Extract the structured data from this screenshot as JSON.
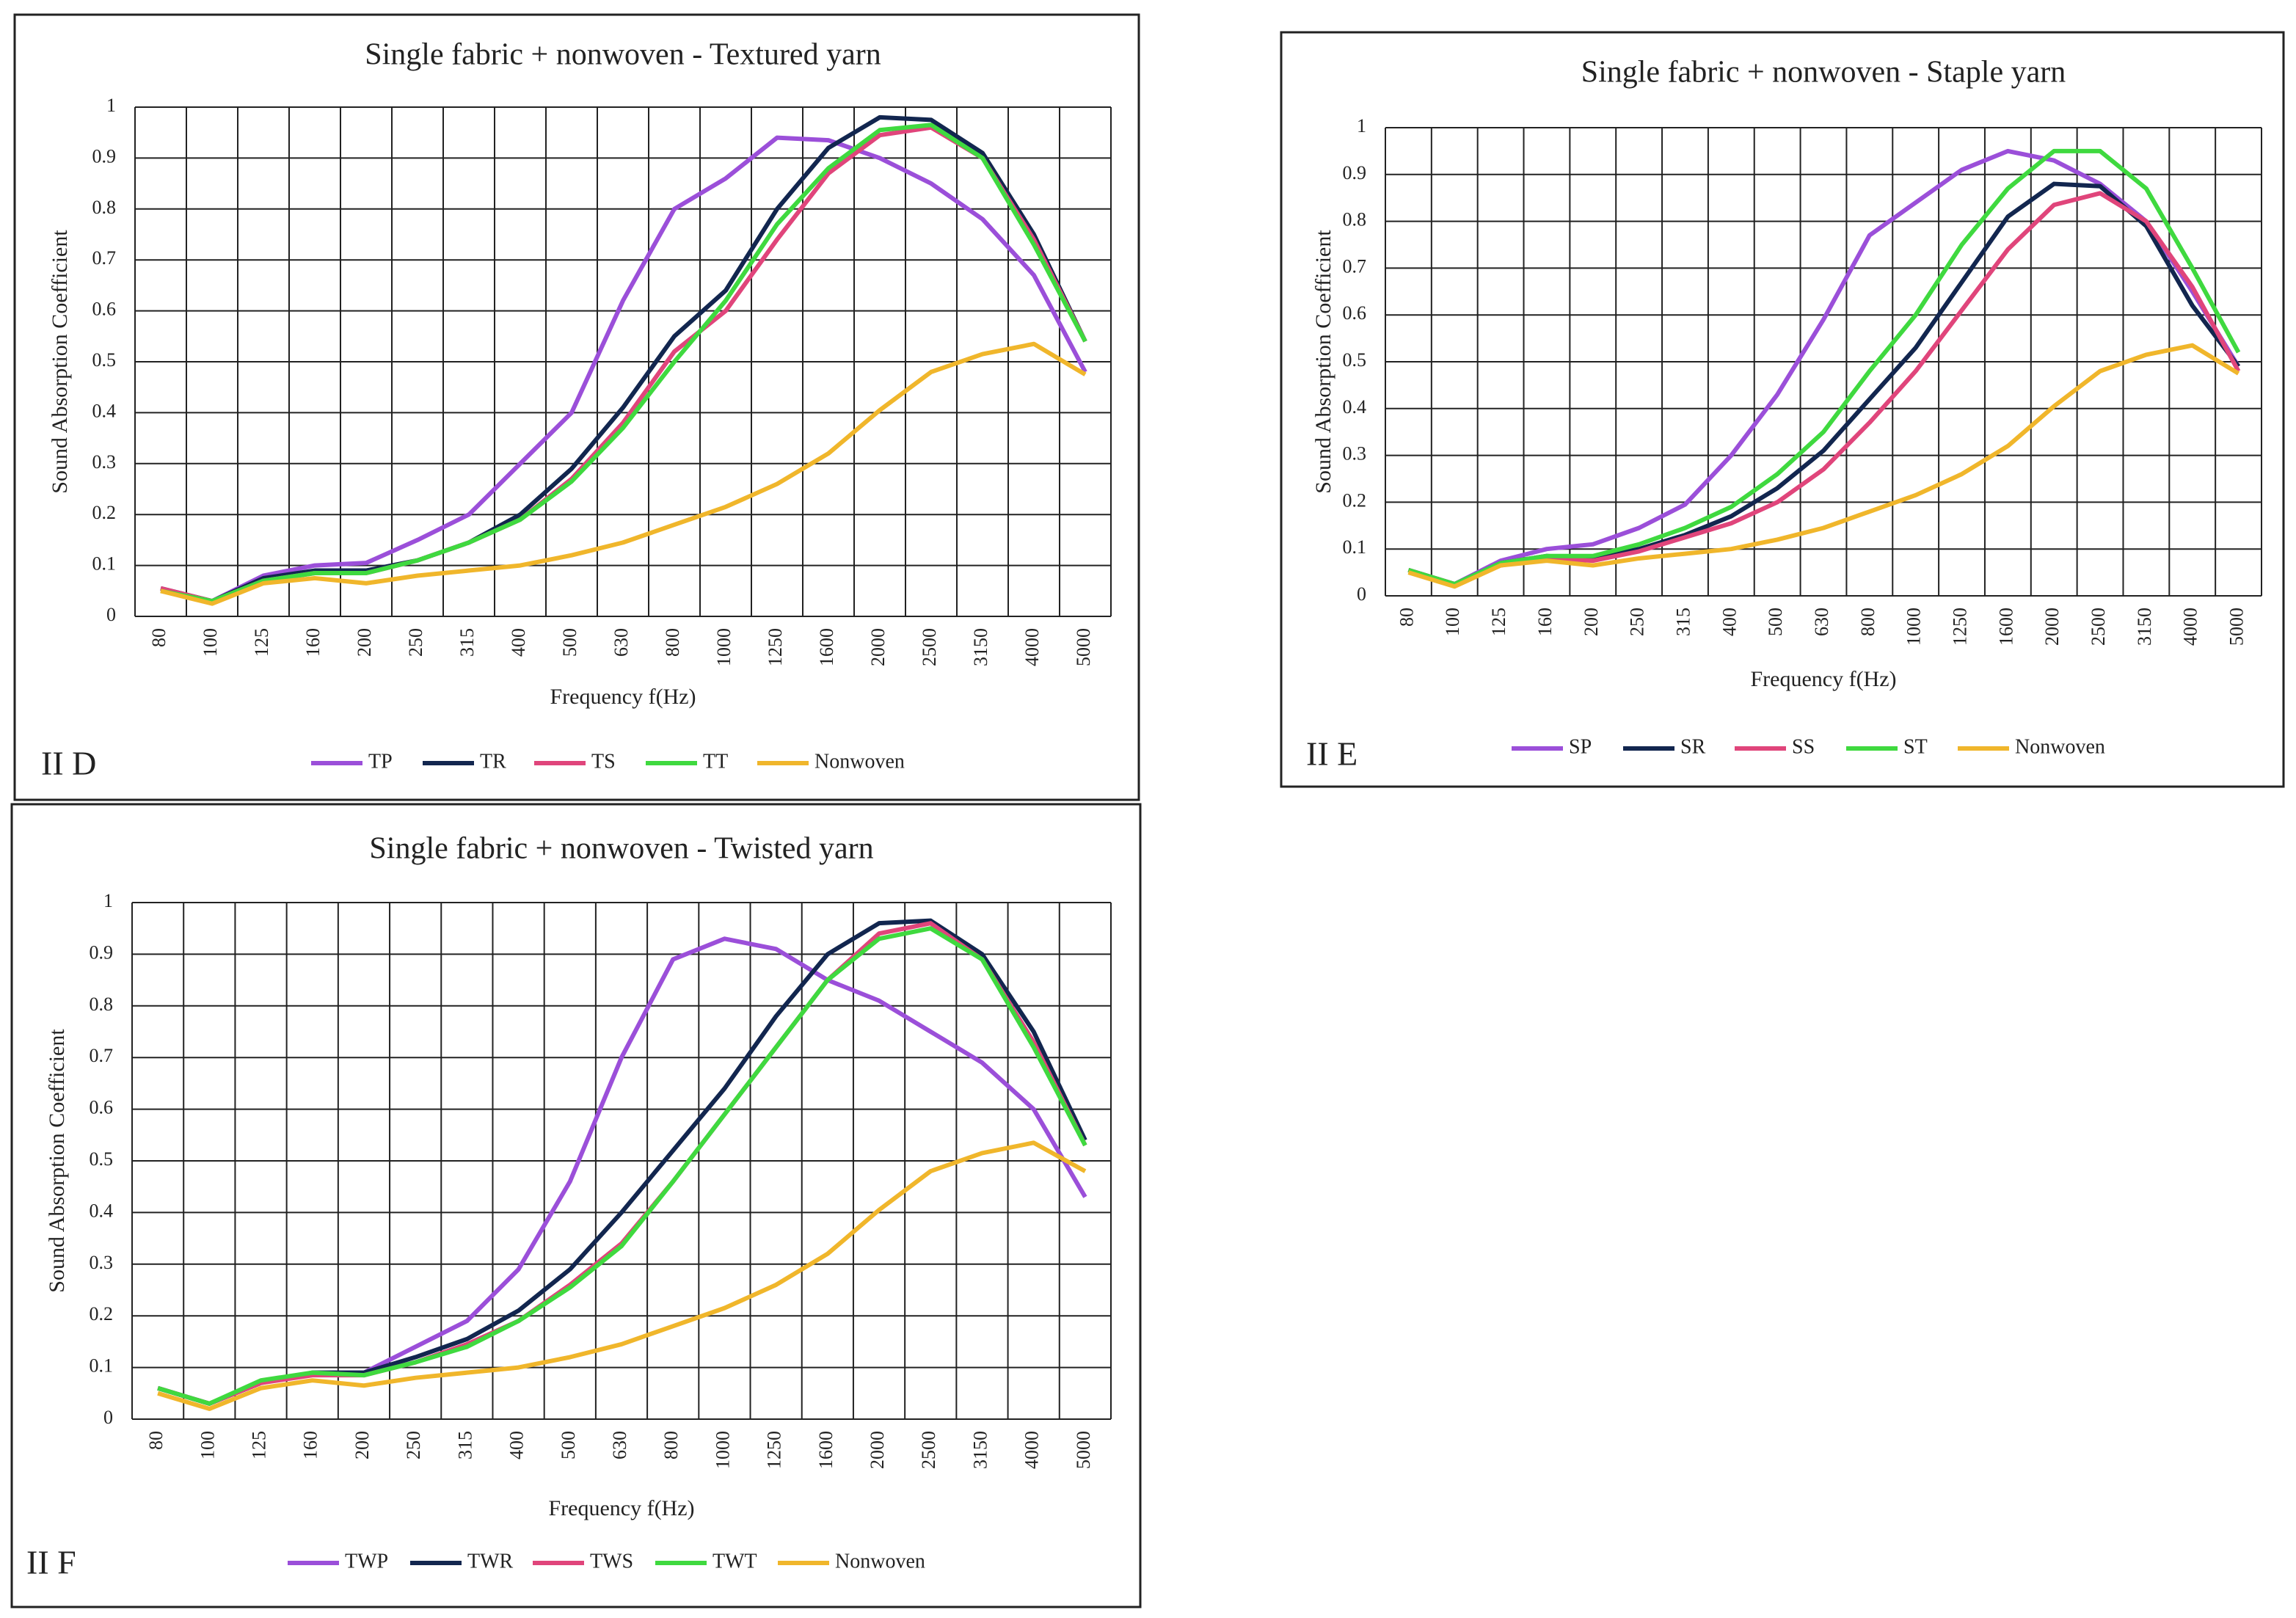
{
  "chart_data": [
    {
      "type": "line",
      "title": "Single fabric + nonwoven - Textured yarn",
      "panel_label": "II D",
      "x_label": "Frequency f(Hz)",
      "y_label": "Sound Absorption Coefficient",
      "categories": [
        "80",
        "100",
        "125",
        "160",
        "200",
        "250",
        "315",
        "400",
        "500",
        "630",
        "800",
        "1000",
        "1250",
        "1600",
        "2000",
        "2500",
        "3150",
        "4000",
        "5000"
      ],
      "ylim": [
        0,
        1
      ],
      "yticks": [
        0,
        0.1,
        0.2,
        0.3,
        0.4,
        0.5,
        0.6,
        0.7,
        0.8,
        0.9,
        1
      ],
      "grid": true,
      "series": [
        {
          "name": "TP",
          "color": "#9b4fd9",
          "values": [
            0.055,
            0.03,
            0.08,
            0.1,
            0.105,
            0.15,
            0.2,
            0.3,
            0.4,
            0.62,
            0.8,
            0.86,
            0.94,
            0.935,
            0.9,
            0.85,
            0.78,
            0.67,
            0.48
          ]
        },
        {
          "name": "TR",
          "color": "#12264f",
          "values": [
            0.055,
            0.03,
            0.075,
            0.09,
            0.09,
            0.11,
            0.145,
            0.2,
            0.29,
            0.41,
            0.55,
            0.64,
            0.8,
            0.92,
            0.98,
            0.975,
            0.91,
            0.75,
            0.54
          ]
        },
        {
          "name": "TS",
          "color": "#e0457b",
          "values": [
            0.055,
            0.03,
            0.07,
            0.085,
            0.085,
            0.11,
            0.145,
            0.19,
            0.27,
            0.38,
            0.52,
            0.6,
            0.74,
            0.87,
            0.945,
            0.96,
            0.9,
            0.74,
            0.54
          ]
        },
        {
          "name": "TT",
          "color": "#3fd93f",
          "values": [
            0.05,
            0.03,
            0.07,
            0.085,
            0.085,
            0.11,
            0.145,
            0.19,
            0.265,
            0.37,
            0.5,
            0.62,
            0.77,
            0.88,
            0.955,
            0.965,
            0.9,
            0.73,
            0.54
          ]
        },
        {
          "name": "Nonwoven",
          "color": "#f0b62b",
          "values": [
            0.05,
            0.025,
            0.065,
            0.075,
            0.065,
            0.08,
            0.09,
            0.1,
            0.12,
            0.145,
            0.18,
            0.215,
            0.26,
            0.32,
            0.405,
            0.48,
            0.515,
            0.535,
            0.475
          ]
        }
      ]
    },
    {
      "type": "line",
      "title": "Single fabric + nonwoven - Staple  yarn",
      "panel_label": "II E",
      "x_label": "Frequency f(Hz)",
      "y_label": "Sound Absorption Coefficient",
      "categories": [
        "80",
        "100",
        "125",
        "160",
        "200",
        "250",
        "315",
        "400",
        "500",
        "630",
        "800",
        "1000",
        "1250",
        "1600",
        "2000",
        "2500",
        "3150",
        "4000",
        "5000"
      ],
      "ylim": [
        0,
        1
      ],
      "yticks": [
        0,
        0.1,
        0.2,
        0.3,
        0.4,
        0.5,
        0.6,
        0.7,
        0.8,
        0.9,
        1
      ],
      "grid": true,
      "series": [
        {
          "name": "SP",
          "color": "#9b4fd9",
          "values": [
            0.055,
            0.025,
            0.075,
            0.1,
            0.11,
            0.145,
            0.195,
            0.3,
            0.43,
            0.59,
            0.77,
            0.84,
            0.91,
            0.95,
            0.93,
            0.88,
            0.8,
            0.65,
            0.49
          ]
        },
        {
          "name": "SR",
          "color": "#12264f",
          "values": [
            0.055,
            0.025,
            0.07,
            0.085,
            0.08,
            0.1,
            0.13,
            0.17,
            0.23,
            0.31,
            0.42,
            0.53,
            0.67,
            0.81,
            0.88,
            0.875,
            0.79,
            0.62,
            0.49
          ]
        },
        {
          "name": "SS",
          "color": "#e0457b",
          "values": [
            0.055,
            0.025,
            0.065,
            0.08,
            0.075,
            0.095,
            0.125,
            0.155,
            0.2,
            0.27,
            0.37,
            0.48,
            0.61,
            0.74,
            0.835,
            0.86,
            0.8,
            0.66,
            0.48
          ]
        },
        {
          "name": "ST",
          "color": "#3fd93f",
          "values": [
            0.055,
            0.025,
            0.07,
            0.085,
            0.085,
            0.11,
            0.145,
            0.19,
            0.26,
            0.35,
            0.48,
            0.6,
            0.75,
            0.87,
            0.95,
            0.95,
            0.87,
            0.7,
            0.52
          ]
        },
        {
          "name": "Nonwoven",
          "color": "#f0b62b",
          "values": [
            0.05,
            0.02,
            0.065,
            0.075,
            0.065,
            0.08,
            0.09,
            0.1,
            0.12,
            0.145,
            0.18,
            0.215,
            0.26,
            0.32,
            0.405,
            0.48,
            0.515,
            0.535,
            0.475
          ]
        }
      ]
    },
    {
      "type": "line",
      "title": "Single fabric + nonwoven - Twisted yarn",
      "panel_label": "II F",
      "x_label": "Frequency f(Hz)",
      "y_label": "Sound Absorption Coefficient",
      "categories": [
        "80",
        "100",
        "125",
        "160",
        "200",
        "250",
        "315",
        "400",
        "500",
        "630",
        "800",
        "1000",
        "1250",
        "1600",
        "2000",
        "2500",
        "3150",
        "4000",
        "5000"
      ],
      "ylim": [
        0,
        1
      ],
      "yticks": [
        0,
        0.1,
        0.2,
        0.3,
        0.4,
        0.5,
        0.6,
        0.7,
        0.8,
        0.9,
        1
      ],
      "grid": true,
      "series": [
        {
          "name": "TWP",
          "color": "#9b4fd9",
          "values": [
            0.06,
            0.03,
            0.07,
            0.09,
            0.09,
            0.14,
            0.19,
            0.29,
            0.46,
            0.7,
            0.89,
            0.93,
            0.91,
            0.85,
            0.81,
            0.75,
            0.69,
            0.6,
            0.43
          ]
        },
        {
          "name": "TWR",
          "color": "#12264f",
          "values": [
            0.06,
            0.03,
            0.07,
            0.09,
            0.09,
            0.12,
            0.155,
            0.21,
            0.29,
            0.4,
            0.52,
            0.64,
            0.78,
            0.9,
            0.96,
            0.965,
            0.9,
            0.75,
            0.54
          ]
        },
        {
          "name": "TWS",
          "color": "#e0457b",
          "values": [
            0.06,
            0.03,
            0.07,
            0.085,
            0.085,
            0.11,
            0.145,
            0.19,
            0.26,
            0.34,
            0.46,
            0.59,
            0.72,
            0.85,
            0.94,
            0.96,
            0.89,
            0.73,
            0.53
          ]
        },
        {
          "name": "TWT",
          "color": "#3fd93f",
          "values": [
            0.06,
            0.03,
            0.075,
            0.09,
            0.085,
            0.11,
            0.14,
            0.19,
            0.255,
            0.335,
            0.46,
            0.59,
            0.72,
            0.85,
            0.93,
            0.95,
            0.89,
            0.72,
            0.53
          ]
        },
        {
          "name": "Nonwoven",
          "color": "#f0b62b",
          "values": [
            0.05,
            0.02,
            0.06,
            0.075,
            0.065,
            0.08,
            0.09,
            0.1,
            0.12,
            0.145,
            0.18,
            0.215,
            0.26,
            0.32,
            0.405,
            0.48,
            0.515,
            0.535,
            0.48
          ]
        }
      ]
    }
  ]
}
